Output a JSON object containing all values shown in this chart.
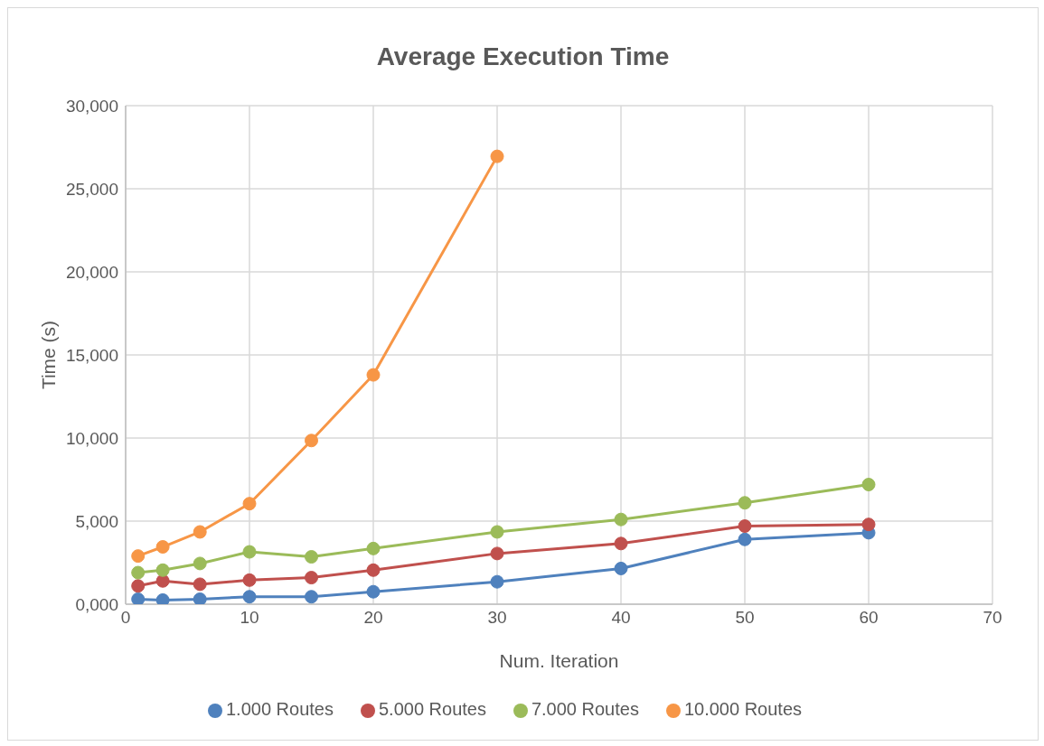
{
  "chart_data": {
    "type": "line",
    "title": "Average Execution Time",
    "xlabel": "Num. Iteration",
    "ylabel": "Time (s)",
    "x": [
      1,
      3,
      6,
      10,
      15,
      20,
      30,
      40,
      50,
      60
    ],
    "series": [
      {
        "name": "1.000 Routes",
        "color": "#4f81bd",
        "values": [
          0.3,
          0.25,
          0.3,
          0.45,
          0.45,
          0.75,
          1.35,
          2.15,
          3.9,
          4.3
        ]
      },
      {
        "name": "5.000 Routes",
        "color": "#c0504d",
        "values": [
          1.1,
          1.4,
          1.2,
          1.45,
          1.6,
          2.05,
          3.05,
          3.65,
          4.7,
          4.8
        ]
      },
      {
        "name": "7.000 Routes",
        "color": "#9bbb59",
        "values": [
          1.9,
          2.05,
          2.45,
          3.15,
          2.85,
          3.35,
          4.35,
          5.1,
          6.1,
          7.2
        ]
      },
      {
        "name": "10.000 Routes",
        "color": "#f79646",
        "values": [
          2.9,
          3.45,
          4.35,
          6.05,
          9.85,
          13.8,
          26.95,
          null,
          null,
          null
        ]
      }
    ],
    "xlim": [
      0,
      70
    ],
    "xticks": [
      0,
      10,
      20,
      30,
      40,
      50,
      60,
      70
    ],
    "ylim": [
      0,
      30
    ],
    "yticks": [
      {
        "value": 0,
        "label": "0,000"
      },
      {
        "value": 5,
        "label": "5,000"
      },
      {
        "value": 10,
        "label": "10,000"
      },
      {
        "value": 15,
        "label": "15,000"
      },
      {
        "value": 20,
        "label": "20,000"
      },
      {
        "value": 25,
        "label": "25,000"
      },
      {
        "value": 30,
        "label": "30,000"
      }
    ],
    "grid": true,
    "legend": "bottom",
    "marker": "circle",
    "line_style": "solid"
  }
}
